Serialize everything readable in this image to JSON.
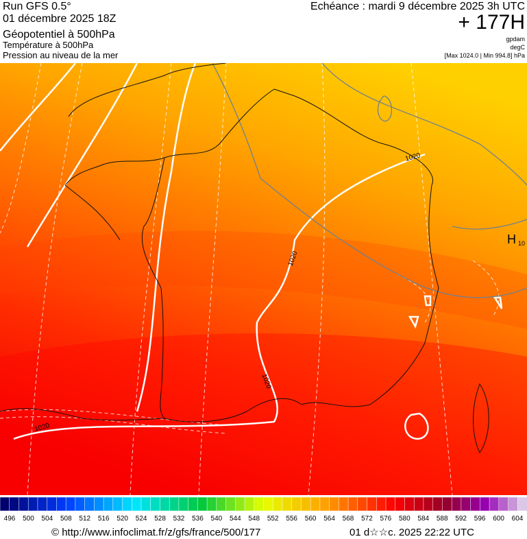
{
  "header": {
    "run": "Run GFS 0.5°",
    "run_date": "01 décembre 2025 18Z",
    "param_1": "Géopotentiel à 500hPa",
    "param_2": "Température à 500hPa",
    "param_3": "Pression au niveau de la mer",
    "valid": "Echéance : mardi 9 décembre 2025 3h UTC",
    "lead": "+ 177H",
    "unit_1": "gpdam",
    "unit_2": "degC",
    "extremes": "[Max 1024.0 | Min 994.8] hPa"
  },
  "map": {
    "isobar_labels": [
      "1020",
      "1020",
      "1020",
      "1020"
    ],
    "high": "H",
    "high_value": "10"
  },
  "scale": {
    "labels": [
      496,
      500,
      504,
      508,
      512,
      516,
      520,
      524,
      528,
      532,
      536,
      540,
      544,
      548,
      552,
      556,
      560,
      564,
      568,
      572,
      576,
      580,
      584,
      588,
      592,
      596,
      600,
      604
    ]
  },
  "footer": {
    "source": "© http://www.infoclimat.fr/z/gfs/france/500/177",
    "generated": "01 d☆☆c. 2025 22:22 UTC"
  }
}
